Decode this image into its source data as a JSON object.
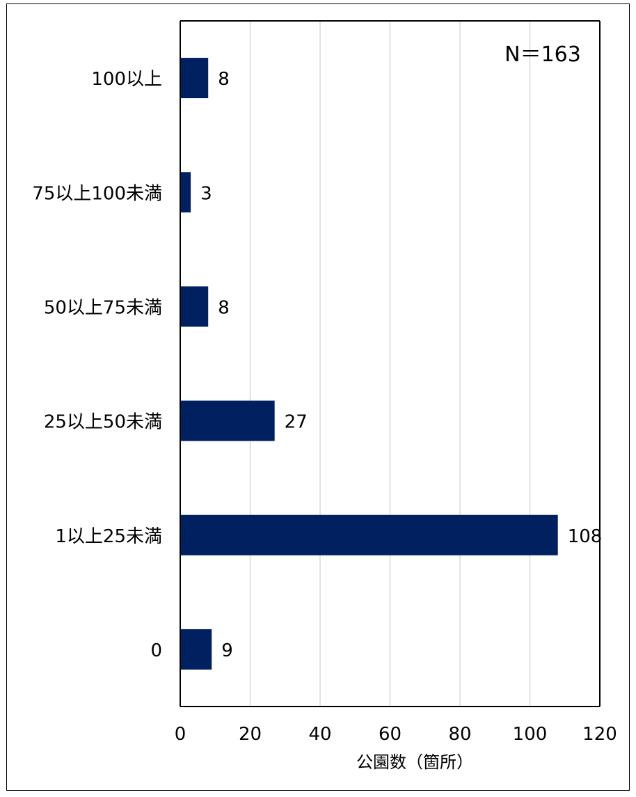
{
  "chart_data": {
    "type": "bar",
    "orientation": "horizontal",
    "categories": [
      "100以上",
      "75以上100未満",
      "50以上75未満",
      "25以上50未満",
      "1以上25未満",
      "0"
    ],
    "values": [
      8,
      3,
      8,
      27,
      108,
      9
    ],
    "annotation": "N＝163",
    "xlabel": "公園数（箇所）",
    "ylabel": "",
    "xlim": [
      0,
      120
    ],
    "xticks": [
      "0",
      "20",
      "40",
      "60",
      "80",
      "100",
      "120"
    ],
    "grid": true,
    "bar_color": "#002060",
    "grid_color": "#d9d9d9",
    "legend": "none"
  }
}
